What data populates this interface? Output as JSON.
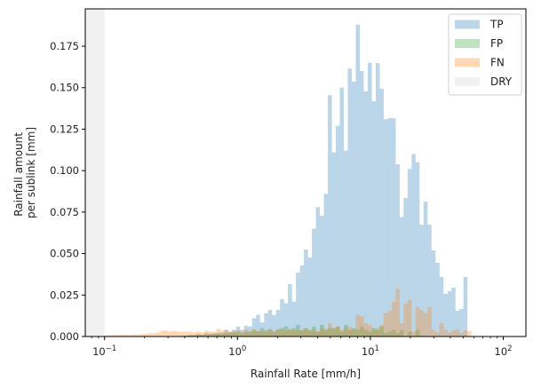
{
  "chart_data": {
    "type": "bar",
    "subtype": "overlapping-histogram",
    "title": "",
    "xlabel": "Rainfall Rate [mm/h]",
    "ylabel_lines": [
      "Rainfall amount",
      "per sublink [mm]"
    ],
    "xscale": "log",
    "xlim_log10": [
      -1.145,
      2.17
    ],
    "ylim": [
      0,
      0.1975
    ],
    "x_ticks": [
      {
        "label_base": "10",
        "label_exp": "−1",
        "log10": -1
      },
      {
        "label_base": "10",
        "label_exp": "0",
        "log10": 0
      },
      {
        "label_base": "10",
        "label_exp": "1",
        "log10": 1
      },
      {
        "label_base": "10",
        "label_exp": "2",
        "log10": 2
      }
    ],
    "y_ticks": [
      "0.000",
      "0.025",
      "0.050",
      "0.075",
      "0.100",
      "0.125",
      "0.150",
      "0.175"
    ],
    "y_tick_values": [
      0,
      0.025,
      0.05,
      0.075,
      0.1,
      0.125,
      0.15,
      0.175
    ],
    "grid": false,
    "legend_position": "upper right",
    "bin_start_log10": -1.0,
    "bin_width_log10": 0.03,
    "dry_region_log10": [
      -1.145,
      -1.0
    ],
    "series": [
      {
        "name": "TP",
        "color": "#1f77b4",
        "alpha": 0.3,
        "values": [
          0,
          0,
          0,
          0,
          0,
          0,
          0,
          0,
          0,
          0,
          0,
          0,
          0,
          0,
          0,
          0,
          0,
          0,
          0,
          0.0005,
          0.0005,
          0.001,
          0.001,
          0.0015,
          0.001,
          0.002,
          0.0015,
          0.002,
          0.002,
          0.0025,
          0.004,
          0.003,
          0.004,
          0.006,
          0.004,
          0.0065,
          0.006,
          0.011,
          0.013,
          0.0085,
          0.014,
          0.016,
          0.013,
          0.016,
          0.0225,
          0.02,
          0.0316,
          0.021,
          0.0385,
          0.0428,
          0.0524,
          0.0476,
          0.065,
          0.078,
          0.0727,
          0.086,
          0.1455,
          0.111,
          0.127,
          0.15,
          0.112,
          0.1616,
          0.1536,
          0.188,
          0.16,
          0.1477,
          0.165,
          0.1418,
          0.1648,
          0.1493,
          0.131,
          0.1316,
          0.1316,
          0.1038,
          0.072,
          0.0835,
          0.101,
          0.11,
          0.105,
          0.0674,
          0.0813,
          0.0674,
          0.0519,
          0.0444,
          0.0359,
          0.0257,
          0.0273,
          0.0294,
          0.0155,
          0.0166,
          0.0359,
          0,
          0,
          0,
          0,
          0,
          0
        ]
      },
      {
        "name": "FP",
        "color": "#2ca02c",
        "alpha": 0.3,
        "values": [
          0,
          0,
          0,
          0,
          0,
          0,
          0,
          0,
          0,
          0,
          0,
          0,
          0,
          0,
          0,
          0,
          0,
          0,
          0,
          0,
          0.0005,
          0.0005,
          0.0005,
          0.001,
          0.001,
          0.001,
          0.0015,
          0.0015,
          0.002,
          0.0015,
          0.002,
          0.002,
          0.0025,
          0.003,
          0.002,
          0.003,
          0.003,
          0.004,
          0.003,
          0.005,
          0.003,
          0.0045,
          0.003,
          0.004,
          0.005,
          0.006,
          0.004,
          0.005,
          0.007,
          0.004,
          0.005,
          0.004,
          0.006,
          0.003,
          0.007,
          0.004,
          0.005,
          0.005,
          0.006,
          0.003,
          0.007,
          0.004,
          0.005,
          0.004,
          0.006,
          0.004,
          0.003,
          0.005,
          0.004,
          0.006,
          0.002,
          0.003,
          0.004,
          0.002,
          0.004,
          0,
          0.003,
          0,
          0.004,
          0,
          0,
          0,
          0,
          0,
          0,
          0,
          0,
          0,
          0,
          0,
          0,
          0,
          0,
          0,
          0,
          0,
          0
        ]
      },
      {
        "name": "FN",
        "color": "#ff7f0e",
        "alpha": 0.3,
        "values": [
          0.0008,
          0.0008,
          0.001,
          0.001,
          0.0012,
          0.0012,
          0.001,
          0.0012,
          0.0012,
          0.0015,
          0.0015,
          0.002,
          0.002,
          0.0025,
          0.0035,
          0.0035,
          0.003,
          0.0035,
          0.003,
          0.003,
          0.003,
          0.003,
          0.0025,
          0.003,
          0.0025,
          0.0035,
          0.003,
          0.003,
          0.0045,
          0.0035,
          0.004,
          0.003,
          0.0035,
          0.0035,
          0.003,
          0.0045,
          0.003,
          0.0045,
          0.0035,
          0.003,
          0.004,
          0.004,
          0.003,
          0.0045,
          0.004,
          0.0035,
          0.0045,
          0.004,
          0.004,
          0.0035,
          0.005,
          0.0035,
          0.004,
          0.003,
          0.005,
          0.0045,
          0.008,
          0.005,
          0.006,
          0.004,
          0.005,
          0.006,
          0.004,
          0.013,
          0.012,
          0.008,
          0.007,
          0.004,
          0.005,
          0.007,
          0.014,
          0.0155,
          0.021,
          0.029,
          0.008,
          0.02,
          0.022,
          0.0028,
          0.018,
          0.016,
          0.014,
          0.018,
          0.004,
          0.0024,
          0.008,
          0.004,
          0.0024,
          0.0035,
          0.0045,
          0.002,
          0.0038,
          0.0032,
          0,
          0,
          0,
          0,
          0
        ]
      }
    ],
    "legend": [
      {
        "label": "TP",
        "color": "#1f77b4",
        "alpha": 0.3
      },
      {
        "label": "FP",
        "color": "#2ca02c",
        "alpha": 0.3
      },
      {
        "label": "FN",
        "color": "#ff7f0e",
        "alpha": 0.3
      },
      {
        "label": "DRY",
        "color": "#bfbfbf",
        "alpha": 0.22
      }
    ]
  }
}
